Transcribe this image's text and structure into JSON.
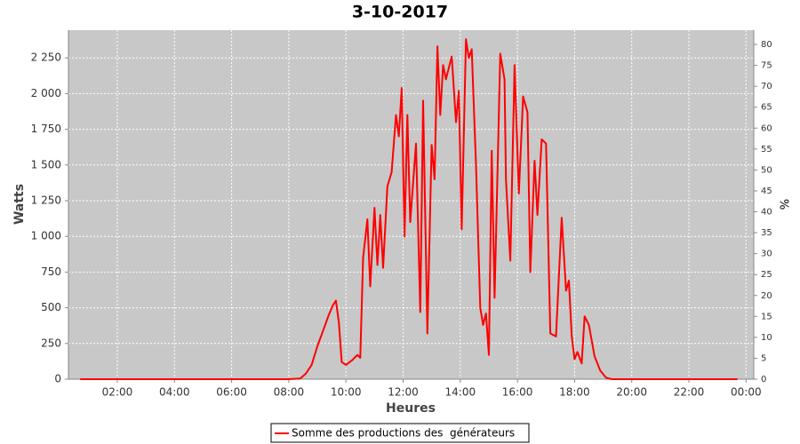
{
  "chart_data": {
    "type": "line",
    "title": "3-10-2017",
    "xlabel": "Heures",
    "ylabel": "Watts",
    "y2label": "%",
    "x": [
      0.7,
      8.0,
      8.4,
      8.6,
      8.8,
      9.0,
      9.2,
      9.4,
      9.55,
      9.65,
      9.75,
      9.85,
      10.0,
      10.2,
      10.4,
      10.5,
      10.6,
      10.75,
      10.85,
      11.0,
      11.1,
      11.2,
      11.3,
      11.45,
      11.6,
      11.75,
      11.85,
      11.95,
      12.05,
      12.15,
      12.25,
      12.45,
      12.6,
      12.7,
      12.85,
      13.0,
      13.1,
      13.2,
      13.3,
      13.4,
      13.5,
      13.7,
      13.85,
      13.95,
      14.05,
      14.2,
      14.3,
      14.4,
      14.55,
      14.7,
      14.8,
      14.9,
      15.0,
      15.1,
      15.2,
      15.4,
      15.55,
      15.6,
      15.75,
      15.9,
      16.05,
      16.2,
      16.35,
      16.45,
      16.6,
      16.7,
      16.85,
      17.0,
      17.15,
      17.35,
      17.55,
      17.7,
      17.8,
      17.9,
      18.0,
      18.1,
      18.25,
      18.35,
      18.5,
      18.7,
      18.9,
      19.1,
      19.3,
      23.7
    ],
    "series": [
      {
        "name": "Somme des productions des  générateurs",
        "color": "#ff0000",
        "values": [
          0,
          0,
          5,
          40,
          100,
          230,
          340,
          450,
          520,
          550,
          400,
          120,
          100,
          130,
          170,
          150,
          850,
          1120,
          650,
          1200,
          800,
          1150,
          780,
          1350,
          1450,
          1850,
          1700,
          2040,
          1000,
          1850,
          1100,
          1650,
          470,
          1950,
          320,
          1640,
          1400,
          2330,
          1850,
          2200,
          2100,
          2260,
          1800,
          2020,
          1050,
          2380,
          2250,
          2310,
          1500,
          500,
          380,
          460,
          170,
          1600,
          570,
          2280,
          2100,
          1400,
          830,
          2200,
          1300,
          1980,
          1870,
          750,
          1530,
          1150,
          1680,
          1650,
          320,
          300,
          1130,
          620,
          690,
          300,
          140,
          190,
          110,
          440,
          380,
          160,
          60,
          10,
          0,
          0
        ]
      }
    ],
    "xlim": [
      0.29,
      24.27
    ],
    "xticks": [
      {
        "value": 2,
        "label": "02:00"
      },
      {
        "value": 4,
        "label": "04:00"
      },
      {
        "value": 6,
        "label": "06:00"
      },
      {
        "value": 8,
        "label": "08:00"
      },
      {
        "value": 10,
        "label": "10:00"
      },
      {
        "value": 12,
        "label": "12:00"
      },
      {
        "value": 14,
        "label": "14:00"
      },
      {
        "value": 16,
        "label": "16:00"
      },
      {
        "value": 18,
        "label": "18:00"
      },
      {
        "value": 20,
        "label": "20:00"
      },
      {
        "value": 22,
        "label": "22:00"
      },
      {
        "value": 24,
        "label": "00:00"
      }
    ],
    "ylim": [
      0,
      2444
    ],
    "yticks": [
      0,
      250,
      500,
      750,
      {
        "value": 1000,
        "label": "1 000"
      },
      {
        "value": 1250,
        "label": "1 250"
      },
      {
        "value": 1500,
        "label": "1 500"
      },
      {
        "value": 1750,
        "label": "1 750"
      },
      {
        "value": 2000,
        "label": "2 000"
      },
      {
        "value": 2250,
        "label": "2 250"
      }
    ],
    "y2lim": [
      0,
      83.4
    ],
    "y2ticks": [
      0,
      5,
      10,
      15,
      20,
      25,
      30,
      35,
      40,
      45,
      50,
      55,
      60,
      65,
      70,
      75,
      80
    ],
    "grid": true,
    "legend": "bottom"
  }
}
